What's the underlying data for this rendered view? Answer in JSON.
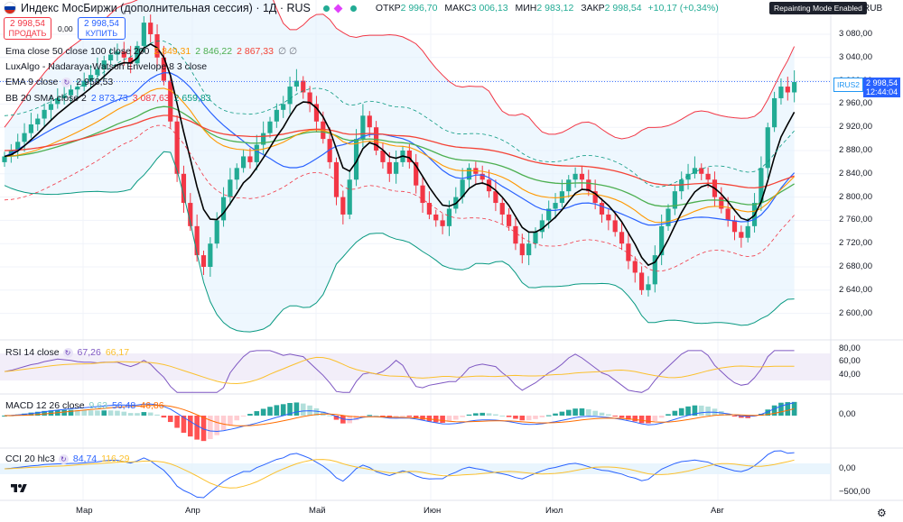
{
  "header": {
    "title": "Индекс МосБиржи (дополнительная сессия) · 1Д · RUS",
    "ohlc": [
      {
        "k": "ОТКР",
        "v": "2 996,70"
      },
      {
        "k": "МАКС",
        "v": "3 006,13"
      },
      {
        "k": "МИН",
        "v": "2 983,12"
      },
      {
        "k": "ЗАКР",
        "v": "2 998,54"
      },
      {
        "k": "",
        "v": "+10,17 (+0,34%)"
      }
    ],
    "repaint_badge": "Repainting Mode Enabled",
    "currency": "RUB",
    "flag_colors": [
      "#ffffff",
      "#0039a6",
      "#d52b1e"
    ],
    "status_color": "#22ab94",
    "marker_color": "#e040fb"
  },
  "trade": {
    "sell_price": "2 998,54",
    "sell_label": "ПРОДАТЬ",
    "spread": "0,00",
    "buy_price": "2 998,54",
    "buy_label": "КУПИТЬ"
  },
  "indicators": {
    "ema_multi": {
      "label": "Ema close 50 close 100 close 200",
      "v1": "2 849,31",
      "v2": "2 846,22",
      "v3": "2 867,33",
      "v4": "∅ ∅"
    },
    "luxalgo": {
      "label": "LuxAlgo - Nadaraya-Watson Envelope 8 3 close"
    },
    "ema9": {
      "label": "EMA 9 close",
      "value": "2 958,53"
    },
    "bb": {
      "label": "BB 20 SMA close 2",
      "v1": "2 873,73",
      "v2": "3 087,63",
      "v3": "2 659,83"
    },
    "rsi": {
      "label": "RSI 14 close",
      "v1": "67,26",
      "v2": "66,17"
    },
    "macd": {
      "label": "MACD 12 26 close",
      "v1": "9,63",
      "v2": "56,48",
      "v3": "46,86"
    },
    "cci": {
      "label": "CCI 20 hlc3",
      "v1": "84,74",
      "v2": "116,29"
    }
  },
  "colors": {
    "up": "#22ab94",
    "down": "#f23645",
    "ema50": "#4caf50",
    "ema100": "#ff9800",
    "ema200": "#f44336",
    "ema9": "#000000",
    "bb_basis": "#2962ff",
    "bb_band": "#089981",
    "bb_upper_line": "#f23645",
    "bb_fill": "#e3f2fd",
    "rsi": "#7e57c2",
    "rsi_ma": "#fbc02d",
    "macd": "#2962ff",
    "signal": "#ff6d00",
    "hist_up_strong": "#26a69a",
    "hist_up_weak": "#b2dfdb",
    "hist_down_strong": "#ff5252",
    "hist_down_weak": "#ffcdd2",
    "cci": "#2962ff",
    "cci_ma": "#fbc02d"
  },
  "price_axis": [
    "3 080,00",
    "3 040,00",
    "3 000,00",
    "2 960,00",
    "2 920,00",
    "2 880,00",
    "2 840,00",
    "2 800,00",
    "2 760,00",
    "2 720,00",
    "2 680,00",
    "2 640,00",
    "2 600,00"
  ],
  "last_price": {
    "symbol": "IRUS2",
    "price": "2 998,54",
    "countdown": "12:44:04"
  },
  "rsi_axis": [
    "80,00",
    "60,00",
    "40,00"
  ],
  "macd_axis": [
    "0,00"
  ],
  "cci_axis": [
    "0,00",
    "−500,00"
  ],
  "time_axis": [
    "Мар",
    "Апр",
    "Май",
    "Июн",
    "Июл",
    "Авг"
  ]
}
